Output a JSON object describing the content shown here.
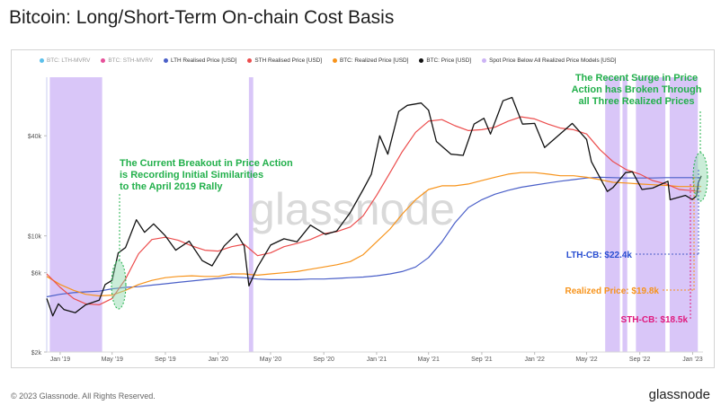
{
  "title": "Bitcoin: Long/Short-Term On-chain Cost Basis",
  "legend": [
    {
      "label": "BTC: LTH-MVRV",
      "color": "#5bc0eb",
      "active": false
    },
    {
      "label": "BTC: STH-MVRV",
      "color": "#e6509a",
      "active": false
    },
    {
      "label": "LTH Realised Price [USD]",
      "color": "#4a5fc8",
      "active": true
    },
    {
      "label": "STH Realised Price [USD]",
      "color": "#ec4d4d",
      "active": true
    },
    {
      "label": "BTC: Realized Price [USD]",
      "color": "#f7931a",
      "active": true
    },
    {
      "label": "BTC: Price [USD]",
      "color": "#111111",
      "active": true
    },
    {
      "label": "Spot Price Below All Realized Price Models [USD]",
      "color": "#ccb3f5",
      "active": true
    }
  ],
  "watermark": "glassnode",
  "footer": "© 2023 Glassnode. All Rights Reserved.",
  "brand": "glassnode",
  "annotations": {
    "left": [
      "The Current Breakout in Price Action",
      "is Recording Initial Similarities",
      "to the April 2019 Rally"
    ],
    "right": [
      "The Recent Surge in Price",
      "Action has Broken Through",
      "all Three Realized Prices"
    ],
    "lth": "LTH-CB: $22.4k",
    "realized": "Realized Price: $19.8k",
    "sth": "STH-CB: $18.5k"
  },
  "colors": {
    "green": "#22b04b",
    "lth": "#4a5fc8",
    "sth": "#ec4d4d",
    "realized": "#f7931a",
    "sth_label": "#e0197d",
    "price": "#111111",
    "band": "#ccb3f5"
  },
  "chart_data": {
    "type": "line",
    "yscale": "log",
    "ylim": [
      2000,
      90000
    ],
    "yticks": [
      {
        "v": 2000,
        "label": "$2k"
      },
      {
        "v": 6000,
        "label": "$6k"
      },
      {
        "v": 10000,
        "label": "$10k"
      },
      {
        "v": 40000,
        "label": "$40k"
      }
    ],
    "xlim": [
      "2018-12-01",
      "2023-01-25"
    ],
    "xticks": [
      {
        "date": "2019-01-01",
        "label": "Jan '19"
      },
      {
        "date": "2019-05-01",
        "label": "May '19"
      },
      {
        "date": "2019-09-01",
        "label": "Sep '19"
      },
      {
        "date": "2020-01-01",
        "label": "Jan '20"
      },
      {
        "date": "2020-05-01",
        "label": "May '20"
      },
      {
        "date": "2020-09-01",
        "label": "Sep '20"
      },
      {
        "date": "2021-01-01",
        "label": "Jan '21"
      },
      {
        "date": "2021-05-01",
        "label": "May '21"
      },
      {
        "date": "2021-09-01",
        "label": "Sep '21"
      },
      {
        "date": "2022-01-01",
        "label": "Jan '22"
      },
      {
        "date": "2022-05-01",
        "label": "May '22"
      },
      {
        "date": "2022-09-01",
        "label": "Sep '22"
      },
      {
        "date": "2023-01-01",
        "label": "Jan '23"
      }
    ],
    "series": [
      {
        "name": "BTC: Price [USD]",
        "key": "price",
        "points": [
          [
            "2018-12-01",
            4200
          ],
          [
            "2018-12-15",
            3300
          ],
          [
            "2018-12-28",
            3900
          ],
          [
            "2019-01-10",
            3600
          ],
          [
            "2019-02-05",
            3450
          ],
          [
            "2019-03-01",
            3850
          ],
          [
            "2019-04-01",
            4100
          ],
          [
            "2019-04-15",
            5100
          ],
          [
            "2019-05-01",
            5400
          ],
          [
            "2019-05-15",
            7900
          ],
          [
            "2019-06-01",
            8500
          ],
          [
            "2019-06-26",
            12500
          ],
          [
            "2019-07-15",
            10500
          ],
          [
            "2019-08-05",
            11800
          ],
          [
            "2019-09-01",
            10000
          ],
          [
            "2019-09-25",
            8200
          ],
          [
            "2019-10-26",
            9300
          ],
          [
            "2019-11-25",
            7100
          ],
          [
            "2019-12-18",
            6600
          ],
          [
            "2020-01-15",
            8700
          ],
          [
            "2020-02-13",
            10300
          ],
          [
            "2020-03-01",
            8700
          ],
          [
            "2020-03-12",
            5000
          ],
          [
            "2020-04-01",
            6500
          ],
          [
            "2020-05-01",
            8800
          ],
          [
            "2020-06-01",
            9600
          ],
          [
            "2020-07-01",
            9200
          ],
          [
            "2020-08-01",
            11600
          ],
          [
            "2020-09-05",
            10200
          ],
          [
            "2020-10-01",
            10700
          ],
          [
            "2020-11-01",
            13800
          ],
          [
            "2020-12-01",
            19000
          ],
          [
            "2020-12-20",
            23500
          ],
          [
            "2021-01-08",
            40000
          ],
          [
            "2021-01-27",
            31000
          ],
          [
            "2021-02-21",
            56000
          ],
          [
            "2021-03-13",
            61000
          ],
          [
            "2021-04-14",
            63000
          ],
          [
            "2021-05-01",
            57000
          ],
          [
            "2021-05-19",
            37000
          ],
          [
            "2021-06-22",
            31000
          ],
          [
            "2021-07-20",
            30500
          ],
          [
            "2021-08-14",
            47000
          ],
          [
            "2021-09-06",
            51000
          ],
          [
            "2021-09-21",
            41000
          ],
          [
            "2021-10-20",
            65000
          ],
          [
            "2021-11-10",
            68000
          ],
          [
            "2021-12-04",
            47000
          ],
          [
            "2022-01-01",
            47500
          ],
          [
            "2022-01-24",
            34000
          ],
          [
            "2022-03-29",
            47500
          ],
          [
            "2022-05-01",
            38000
          ],
          [
            "2022-05-12",
            28000
          ],
          [
            "2022-06-18",
            18500
          ],
          [
            "2022-07-01",
            19500
          ],
          [
            "2022-07-30",
            24000
          ],
          [
            "2022-08-15",
            24300
          ],
          [
            "2022-09-06",
            19000
          ],
          [
            "2022-10-01",
            19400
          ],
          [
            "2022-11-05",
            21300
          ],
          [
            "2022-11-10",
            16500
          ],
          [
            "2022-12-15",
            17500
          ],
          [
            "2022-12-31",
            16550
          ],
          [
            "2023-01-10",
            17400
          ],
          [
            "2023-01-14",
            20800
          ],
          [
            "2023-01-21",
            23000
          ]
        ]
      },
      {
        "name": "STH Realised Price [USD]",
        "key": "sth",
        "points": [
          [
            "2018-12-01",
            5900
          ],
          [
            "2019-01-01",
            4900
          ],
          [
            "2019-02-01",
            4200
          ],
          [
            "2019-03-01",
            3900
          ],
          [
            "2019-04-01",
            3850
          ],
          [
            "2019-05-01",
            4200
          ],
          [
            "2019-06-01",
            5500
          ],
          [
            "2019-07-01",
            7800
          ],
          [
            "2019-08-01",
            9500
          ],
          [
            "2019-09-01",
            9800
          ],
          [
            "2019-10-01",
            9400
          ],
          [
            "2019-11-01",
            8700
          ],
          [
            "2019-12-01",
            8200
          ],
          [
            "2020-01-01",
            8100
          ],
          [
            "2020-02-01",
            8600
          ],
          [
            "2020-03-01",
            8900
          ],
          [
            "2020-04-01",
            7600
          ],
          [
            "2020-05-01",
            7900
          ],
          [
            "2020-06-01",
            8600
          ],
          [
            "2020-07-01",
            9000
          ],
          [
            "2020-08-01",
            9500
          ],
          [
            "2020-09-01",
            10300
          ],
          [
            "2020-10-01",
            10600
          ],
          [
            "2020-11-01",
            11300
          ],
          [
            "2020-12-01",
            13200
          ],
          [
            "2021-01-01",
            17500
          ],
          [
            "2021-02-01",
            24000
          ],
          [
            "2021-03-01",
            32000
          ],
          [
            "2021-04-01",
            42000
          ],
          [
            "2021-05-01",
            49000
          ],
          [
            "2021-06-01",
            50000
          ],
          [
            "2021-07-01",
            46000
          ],
          [
            "2021-08-01",
            43000
          ],
          [
            "2021-09-01",
            43500
          ],
          [
            "2021-10-01",
            45000
          ],
          [
            "2021-11-01",
            49000
          ],
          [
            "2021-12-01",
            52000
          ],
          [
            "2022-01-01",
            50500
          ],
          [
            "2022-02-01",
            47000
          ],
          [
            "2022-03-01",
            44500
          ],
          [
            "2022-04-01",
            43500
          ],
          [
            "2022-05-01",
            41000
          ],
          [
            "2022-06-01",
            33000
          ],
          [
            "2022-07-01",
            28000
          ],
          [
            "2022-08-01",
            25000
          ],
          [
            "2022-09-01",
            23500
          ],
          [
            "2022-10-01",
            21500
          ],
          [
            "2022-11-01",
            20500
          ],
          [
            "2022-12-01",
            19000
          ],
          [
            "2023-01-21",
            18500
          ]
        ]
      },
      {
        "name": "BTC: Realized Price [USD]",
        "key": "realized",
        "points": [
          [
            "2018-12-01",
            5700
          ],
          [
            "2019-01-01",
            5100
          ],
          [
            "2019-02-01",
            4700
          ],
          [
            "2019-03-01",
            4450
          ],
          [
            "2019-04-01",
            4350
          ],
          [
            "2019-05-01",
            4400
          ],
          [
            "2019-06-01",
            4700
          ],
          [
            "2019-07-01",
            5100
          ],
          [
            "2019-08-01",
            5400
          ],
          [
            "2019-09-01",
            5600
          ],
          [
            "2019-10-01",
            5700
          ],
          [
            "2019-11-01",
            5750
          ],
          [
            "2019-12-01",
            5700
          ],
          [
            "2020-01-01",
            5700
          ],
          [
            "2020-02-01",
            5900
          ],
          [
            "2020-03-01",
            5900
          ],
          [
            "2020-04-01",
            5800
          ],
          [
            "2020-05-01",
            5900
          ],
          [
            "2020-06-01",
            6000
          ],
          [
            "2020-07-01",
            6100
          ],
          [
            "2020-08-01",
            6300
          ],
          [
            "2020-09-01",
            6500
          ],
          [
            "2020-10-01",
            6700
          ],
          [
            "2020-11-01",
            7000
          ],
          [
            "2020-12-01",
            7700
          ],
          [
            "2021-01-01",
            9200
          ],
          [
            "2021-02-01",
            11000
          ],
          [
            "2021-03-01",
            13500
          ],
          [
            "2021-04-01",
            16500
          ],
          [
            "2021-05-01",
            19000
          ],
          [
            "2021-06-01",
            20000
          ],
          [
            "2021-07-01",
            20000
          ],
          [
            "2021-08-01",
            20500
          ],
          [
            "2021-09-01",
            21500
          ],
          [
            "2021-10-01",
            22500
          ],
          [
            "2021-11-01",
            23500
          ],
          [
            "2021-12-01",
            24000
          ],
          [
            "2022-01-01",
            24000
          ],
          [
            "2022-02-01",
            23500
          ],
          [
            "2022-03-01",
            23000
          ],
          [
            "2022-04-01",
            23000
          ],
          [
            "2022-05-01",
            22500
          ],
          [
            "2022-06-01",
            21800
          ],
          [
            "2022-07-01",
            21000
          ],
          [
            "2022-08-01",
            20800
          ],
          [
            "2022-09-01",
            20500
          ],
          [
            "2022-10-01",
            20300
          ],
          [
            "2022-11-01",
            20100
          ],
          [
            "2022-12-01",
            19800
          ],
          [
            "2023-01-21",
            19800
          ]
        ]
      },
      {
        "name": "LTH Realised Price [USD]",
        "key": "lth",
        "points": [
          [
            "2018-12-01",
            4300
          ],
          [
            "2019-01-01",
            4450
          ],
          [
            "2019-02-01",
            4550
          ],
          [
            "2019-03-01",
            4600
          ],
          [
            "2019-04-01",
            4650
          ],
          [
            "2019-05-01",
            4800
          ],
          [
            "2019-06-01",
            4900
          ],
          [
            "2019-07-01",
            4950
          ],
          [
            "2019-08-01",
            5050
          ],
          [
            "2019-09-01",
            5150
          ],
          [
            "2019-10-01",
            5250
          ],
          [
            "2019-11-01",
            5350
          ],
          [
            "2019-12-01",
            5450
          ],
          [
            "2020-01-01",
            5550
          ],
          [
            "2020-02-01",
            5650
          ],
          [
            "2020-03-01",
            5600
          ],
          [
            "2020-04-01",
            5500
          ],
          [
            "2020-05-01",
            5450
          ],
          [
            "2020-06-01",
            5450
          ],
          [
            "2020-07-01",
            5450
          ],
          [
            "2020-08-01",
            5500
          ],
          [
            "2020-09-01",
            5500
          ],
          [
            "2020-10-01",
            5550
          ],
          [
            "2020-11-01",
            5600
          ],
          [
            "2020-12-01",
            5650
          ],
          [
            "2021-01-01",
            5750
          ],
          [
            "2021-02-01",
            5900
          ],
          [
            "2021-03-01",
            6100
          ],
          [
            "2021-04-01",
            6500
          ],
          [
            "2021-05-01",
            7400
          ],
          [
            "2021-06-01",
            9200
          ],
          [
            "2021-07-01",
            12000
          ],
          [
            "2021-08-01",
            14800
          ],
          [
            "2021-09-01",
            16500
          ],
          [
            "2021-10-01",
            17800
          ],
          [
            "2021-11-01",
            18800
          ],
          [
            "2021-12-01",
            19600
          ],
          [
            "2022-01-01",
            20200
          ],
          [
            "2022-02-01",
            20800
          ],
          [
            "2022-03-01",
            21300
          ],
          [
            "2022-04-01",
            21800
          ],
          [
            "2022-05-01",
            22300
          ],
          [
            "2022-06-01",
            22500
          ],
          [
            "2022-07-01",
            22400
          ],
          [
            "2022-08-01",
            22300
          ],
          [
            "2022-09-01",
            22300
          ],
          [
            "2022-10-01",
            22300
          ],
          [
            "2022-11-01",
            22400
          ],
          [
            "2022-12-01",
            22400
          ],
          [
            "2023-01-21",
            22400
          ]
        ]
      }
    ],
    "shaded_ranges": [
      {
        "name": "Spot Price Below All Realized Price Models [USD]",
        "ranges": [
          [
            "2018-12-08",
            "2019-04-08"
          ],
          [
            "2020-03-12",
            "2020-03-22"
          ],
          [
            "2022-06-13",
            "2022-07-17"
          ],
          [
            "2022-07-23",
            "2022-08-03"
          ],
          [
            "2022-08-23",
            "2022-10-30"
          ],
          [
            "2022-11-09",
            "2023-01-13"
          ]
        ]
      }
    ]
  }
}
